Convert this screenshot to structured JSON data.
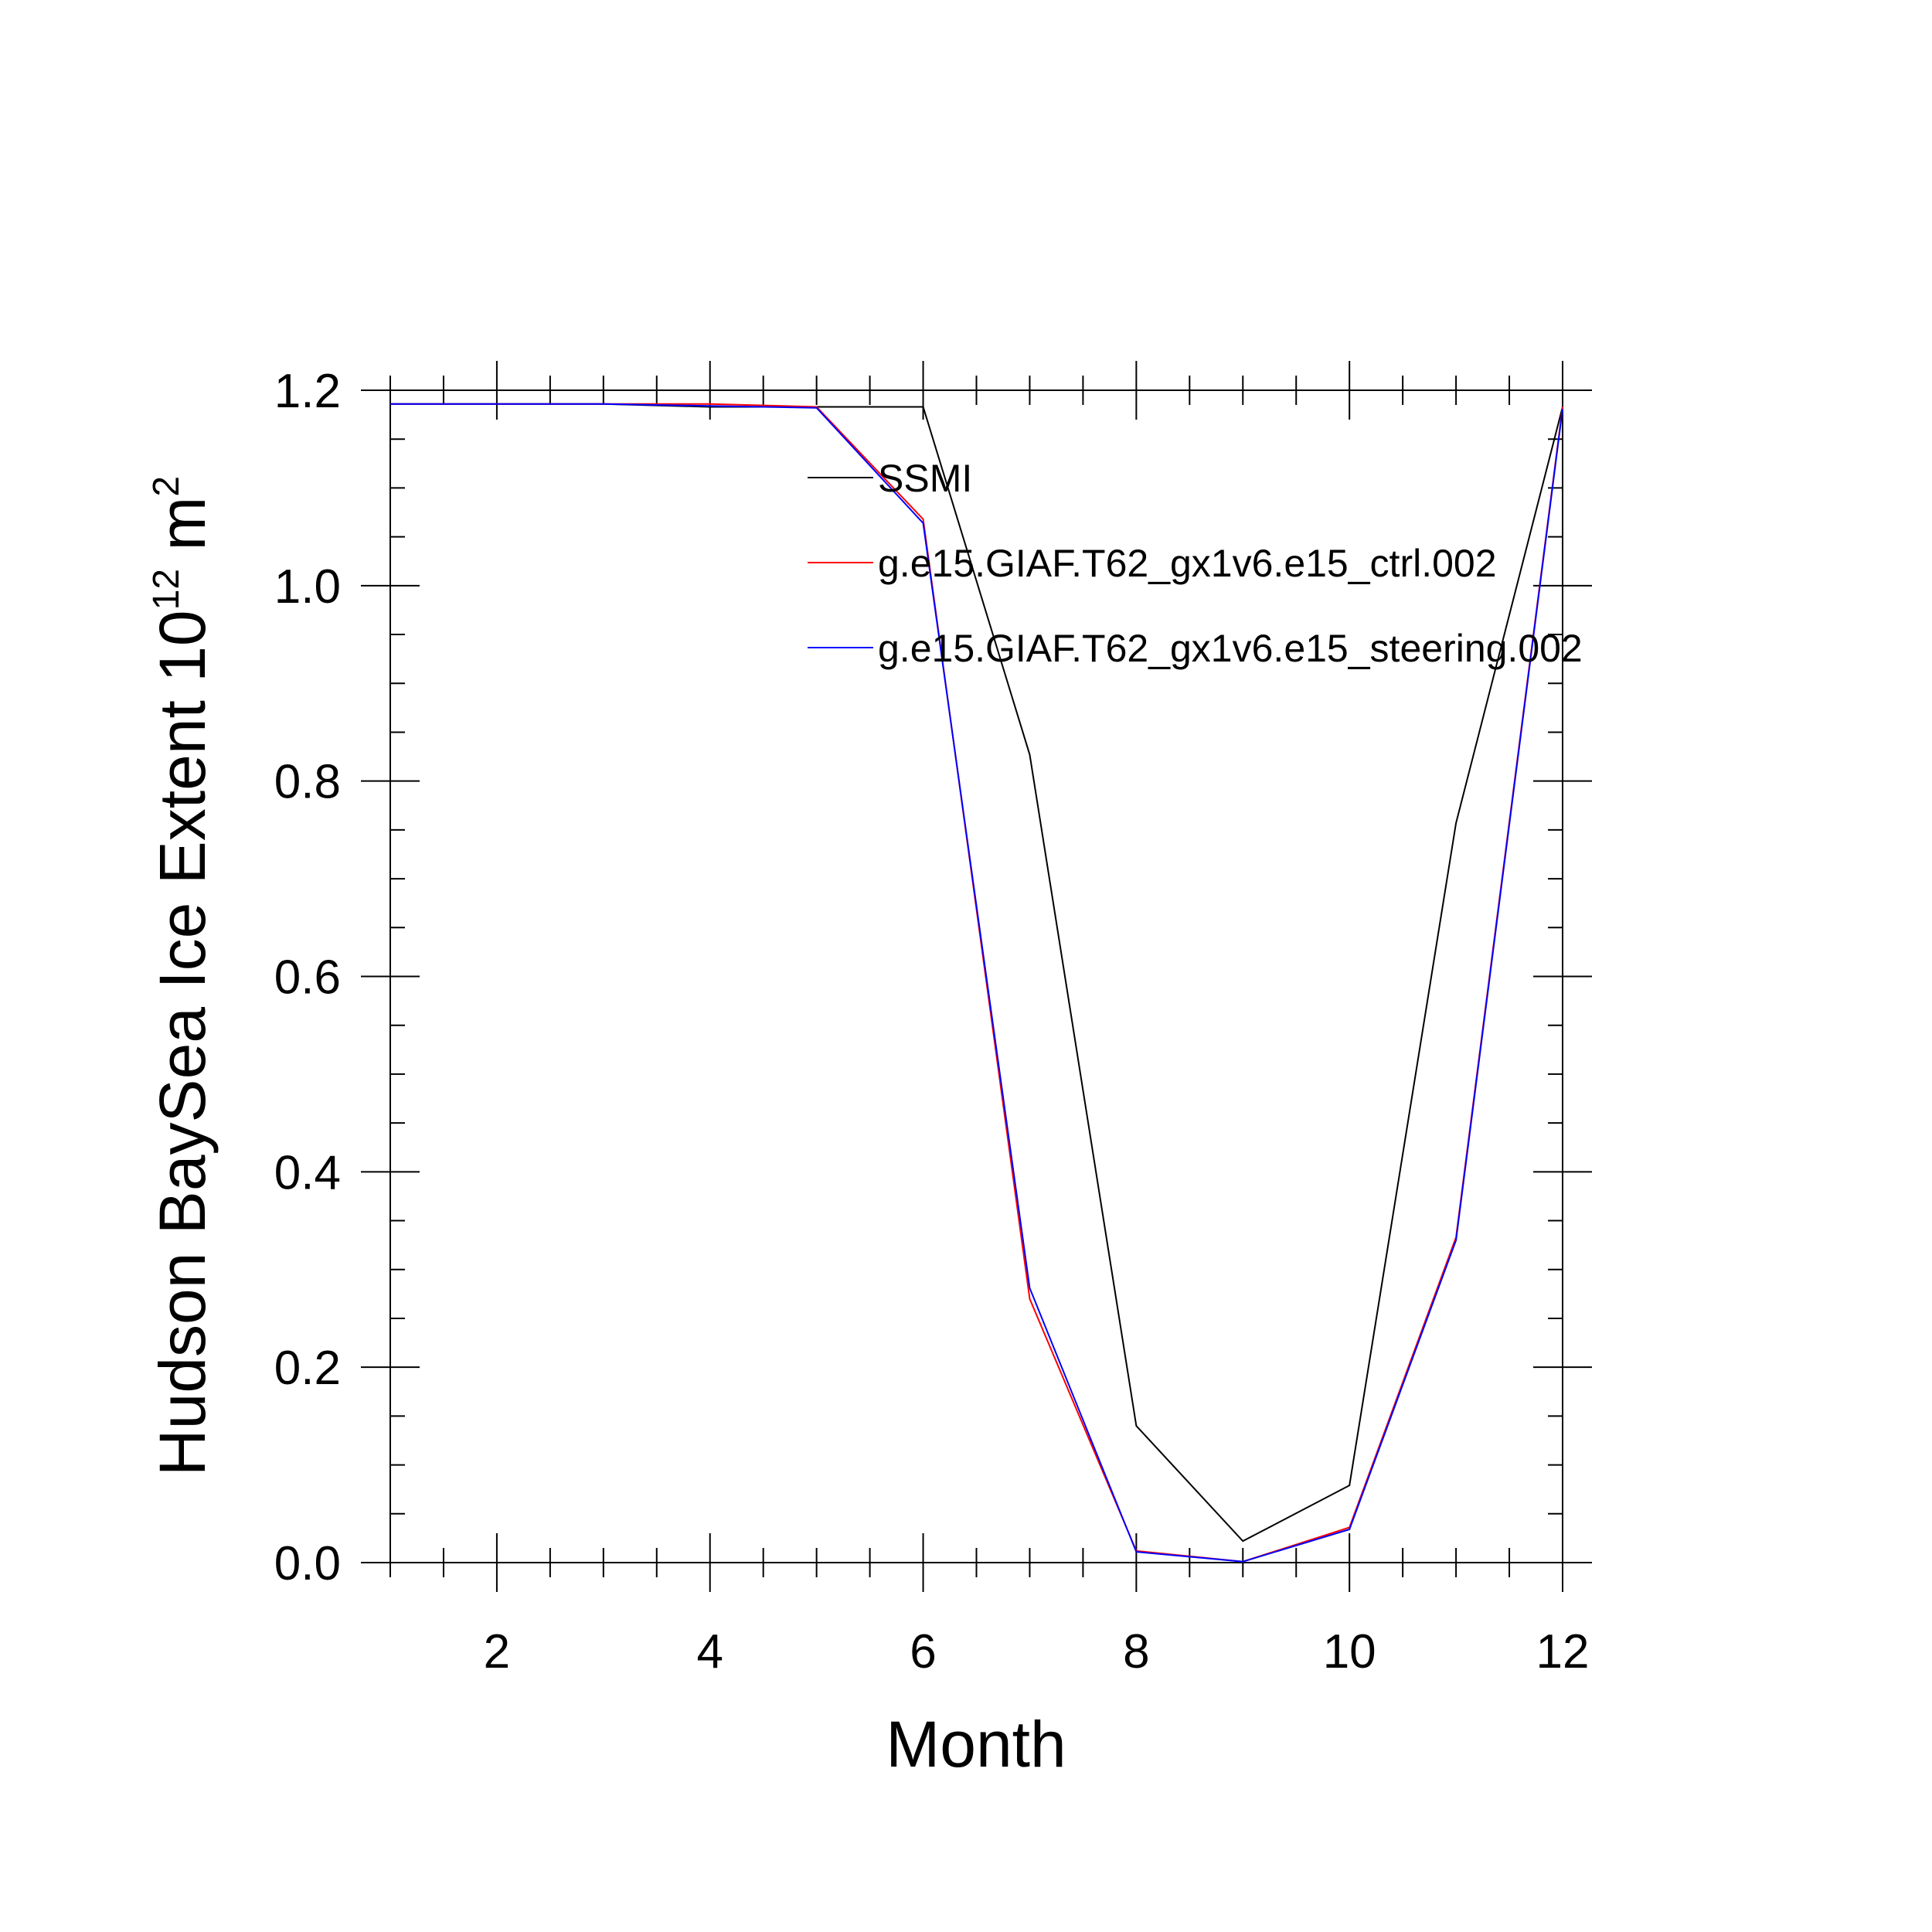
{
  "chart_data": {
    "type": "line",
    "xlabel": "Month",
    "ylabel": {
      "prefix": "Hudson BaySea Ice Extent 10",
      "exponent1": "12",
      "unit": " m",
      "exponent2": "2"
    },
    "xlim": [
      1,
      12
    ],
    "ylim": [
      0,
      1.2
    ],
    "x_ticks": [
      2,
      4,
      6,
      8,
      10,
      12
    ],
    "x_tick_labels": [
      "2",
      "4",
      "6",
      "8",
      "10",
      "12"
    ],
    "y_ticks": [
      0,
      0.2,
      0.4,
      0.6,
      0.8,
      1.0,
      1.2
    ],
    "y_tick_labels": [
      "0.0",
      "0.2",
      "0.4",
      "0.6",
      "0.8",
      "1.0",
      "1.2"
    ],
    "grid": false,
    "legend_position": "top-right",
    "x": [
      1,
      2,
      3,
      4,
      5,
      6,
      7,
      8,
      9,
      10,
      11,
      12
    ],
    "series": [
      {
        "name": "SSMI",
        "color": "#000000",
        "values": [
          1.186,
          1.186,
          1.186,
          1.183,
          1.183,
          1.183,
          0.827,
          0.14,
          0.022,
          0.079,
          0.757,
          1.183
        ]
      },
      {
        "name": "g.e15.GIAF.T62_gx1v6.e15_ctrl.002",
        "color": "#ff0000",
        "values": [
          1.186,
          1.186,
          1.186,
          1.186,
          1.183,
          1.068,
          0.27,
          0.012,
          0.001,
          0.036,
          0.333,
          1.183
        ]
      },
      {
        "name": "g.e15.GIAF.T62_gx1v6.e15_steering.002",
        "color": "#0000ff",
        "values": [
          1.186,
          1.186,
          1.186,
          1.184,
          1.182,
          1.064,
          0.281,
          0.011,
          0.001,
          0.034,
          0.33,
          1.181
        ]
      }
    ]
  }
}
